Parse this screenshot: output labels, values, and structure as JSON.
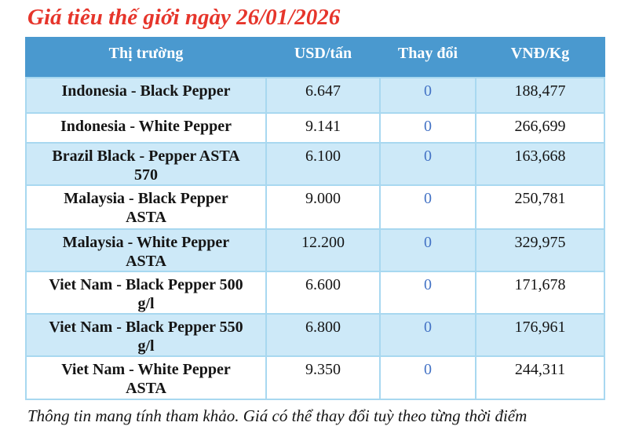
{
  "title": "Giá tiêu thế giới ngày 26/01/2026",
  "table": {
    "headers": [
      "Thị trường",
      "USD/tấn",
      "Thay đổi",
      "VNĐ/Kg"
    ],
    "rows": [
      {
        "market": "Indonesia - Black Pepper",
        "usd": "6.647",
        "change": "0",
        "vnd": "188,477"
      },
      {
        "market": "Indonesia - White Pepper",
        "usd": "9.141",
        "change": "0",
        "vnd": "266,699"
      },
      {
        "market": "Brazil Black - Pepper ASTA\n570",
        "usd": "6.100",
        "change": "0",
        "vnd": "163,668"
      },
      {
        "market": "Malaysia - Black Pepper\nASTA",
        "usd": "9.000",
        "change": "0",
        "vnd": "250,781"
      },
      {
        "market": "Malaysia - White Pepper\nASTA",
        "usd": "12.200",
        "change": "0",
        "vnd": "329,975"
      },
      {
        "market": "Viet Nam - Black Pepper 500\ng/l",
        "usd": "6.600",
        "change": "0",
        "vnd": "171,678"
      },
      {
        "market": "Viet Nam - Black Pepper 550\ng/l",
        "usd": "6.800",
        "change": "0",
        "vnd": "176,961"
      },
      {
        "market": "Viet Nam - White Pepper\nASTA",
        "usd": "9.350",
        "change": "0",
        "vnd": "244,311"
      }
    ]
  },
  "footer": "Thông tin mang tính tham khảo. Giá có thể thay đổi tuỳ theo từng thời điểm",
  "colors": {
    "title_red": "#e6352b",
    "header_bg": "#4a99cf",
    "row_alt_bg": "#cde9f8",
    "border": "#a8d8f0",
    "change_blue": "#4473c5",
    "text_black": "#151515"
  }
}
